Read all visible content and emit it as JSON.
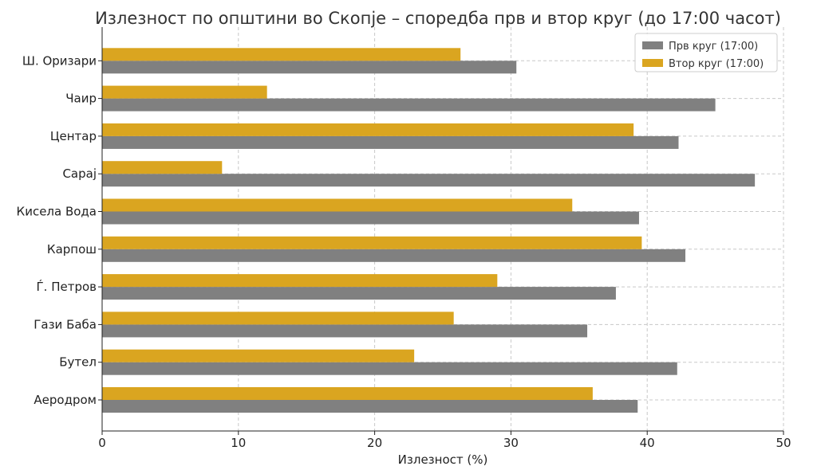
{
  "chart_data": {
    "type": "bar",
    "orientation": "horizontal",
    "title": "Излезност по општини во Скопје – споредба прв и втор круг (до 17:00 часот)",
    "xlabel": "Излезност (%)",
    "ylabel": "",
    "xlim": [
      0,
      50
    ],
    "xticks": [
      0,
      10,
      20,
      30,
      40,
      50
    ],
    "grid": true,
    "legend_position": "top-right",
    "categories": [
      "Аеродром",
      "Бутел",
      "Гази Баба",
      "Ѓ. Петров",
      "Карпош",
      "Кисела Вода",
      "Сарај",
      "Центар",
      "Чаир",
      "Ш. Оризари"
    ],
    "series": [
      {
        "name": "Прв круг (17:00)",
        "color": "#808080",
        "values": [
          39.3,
          42.2,
          35.6,
          37.7,
          42.8,
          39.4,
          47.9,
          42.3,
          45.0,
          30.4
        ]
      },
      {
        "name": "Втор круг (17:00)",
        "color": "#DAA520",
        "values": [
          36.0,
          22.9,
          25.8,
          29.0,
          39.6,
          34.5,
          8.8,
          39.0,
          12.1,
          26.3
        ]
      }
    ]
  }
}
